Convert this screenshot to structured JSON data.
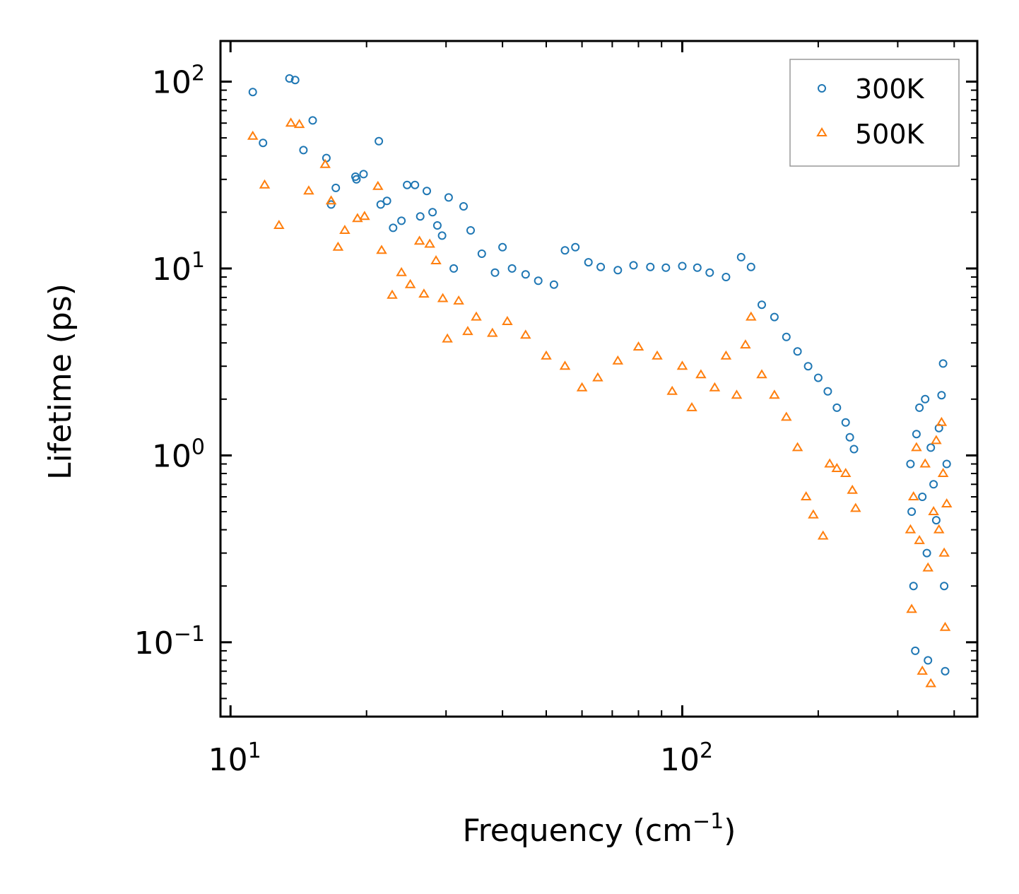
{
  "chart_data": {
    "type": "scatter",
    "xscale": "log",
    "yscale": "log",
    "xlim": [
      9.5,
      450
    ],
    "ylim": [
      0.04,
      165
    ],
    "xlabel": "Frequency (cm",
    "xlabel_sup": "−1",
    "xlabel_tail": ")",
    "ylabel": "Lifetime (ps)",
    "x_ticks": [
      {
        "value": 10,
        "base": "10",
        "exp": "1"
      },
      {
        "value": 100,
        "base": "10",
        "exp": "2"
      }
    ],
    "y_ticks": [
      {
        "value": 0.1,
        "base": "10",
        "exp": "−1"
      },
      {
        "value": 1,
        "base": "10",
        "exp": "0"
      },
      {
        "value": 10,
        "base": "10",
        "exp": "1"
      },
      {
        "value": 100,
        "base": "10",
        "exp": "2"
      }
    ],
    "legend_position": "top-right",
    "series": [
      {
        "name": "300K",
        "marker": "circle",
        "color": "#1f77b4",
        "points": [
          [
            11.2,
            88
          ],
          [
            11.8,
            47
          ],
          [
            13.5,
            104
          ],
          [
            13.9,
            102
          ],
          [
            14.5,
            43
          ],
          [
            15.2,
            62
          ],
          [
            16.3,
            39
          ],
          [
            16.7,
            22
          ],
          [
            17.1,
            27
          ],
          [
            18.9,
            31
          ],
          [
            19.0,
            30
          ],
          [
            19.7,
            32
          ],
          [
            21.3,
            48
          ],
          [
            21.5,
            22
          ],
          [
            22.2,
            23
          ],
          [
            22.9,
            16.5
          ],
          [
            23.9,
            18
          ],
          [
            24.6,
            28
          ],
          [
            25.6,
            28
          ],
          [
            26.3,
            19
          ],
          [
            27.2,
            26
          ],
          [
            28.0,
            20
          ],
          [
            28.7,
            17
          ],
          [
            29.4,
            15
          ],
          [
            30.4,
            24
          ],
          [
            31.2,
            10
          ],
          [
            32.8,
            21.5
          ],
          [
            34.0,
            16
          ],
          [
            36.0,
            12
          ],
          [
            38.5,
            9.5
          ],
          [
            40.0,
            13
          ],
          [
            42.0,
            10
          ],
          [
            45.0,
            9.3
          ],
          [
            48.0,
            8.6
          ],
          [
            52.0,
            8.2
          ],
          [
            55.0,
            12.5
          ],
          [
            58.0,
            13
          ],
          [
            62.0,
            10.8
          ],
          [
            66.0,
            10.2
          ],
          [
            72.0,
            9.8
          ],
          [
            78.0,
            10.4
          ],
          [
            85.0,
            10.2
          ],
          [
            92.0,
            10.1
          ],
          [
            100.0,
            10.3
          ],
          [
            108.0,
            10.1
          ],
          [
            115.0,
            9.5
          ],
          [
            125.0,
            9.0
          ],
          [
            135.0,
            11.5
          ],
          [
            142.0,
            10.2
          ],
          [
            150.0,
            6.4
          ],
          [
            160.0,
            5.5
          ],
          [
            170.0,
            4.3
          ],
          [
            180.0,
            3.6
          ],
          [
            190.0,
            3.0
          ],
          [
            200.0,
            2.6
          ],
          [
            210.0,
            2.2
          ],
          [
            220.0,
            1.8
          ],
          [
            230.0,
            1.5
          ],
          [
            235.0,
            1.25
          ],
          [
            240.0,
            1.08
          ],
          [
            320.0,
            0.9
          ],
          [
            322.0,
            0.5
          ],
          [
            325.0,
            0.2
          ],
          [
            328.0,
            0.09
          ],
          [
            330.0,
            1.3
          ],
          [
            335.0,
            1.8
          ],
          [
            340.0,
            0.6
          ],
          [
            345.0,
            2.0
          ],
          [
            348.0,
            0.3
          ],
          [
            350.0,
            0.08
          ],
          [
            355.0,
            1.1
          ],
          [
            360.0,
            0.7
          ],
          [
            365.0,
            0.45
          ],
          [
            370.0,
            1.4
          ],
          [
            375.0,
            2.1
          ],
          [
            378.0,
            3.1
          ],
          [
            380.0,
            0.2
          ],
          [
            382.0,
            0.07
          ],
          [
            385.0,
            0.9
          ]
        ]
      },
      {
        "name": "500K",
        "marker": "triangle",
        "color": "#ff7f0e",
        "points": [
          [
            11.2,
            51
          ],
          [
            11.9,
            28
          ],
          [
            12.8,
            17
          ],
          [
            13.6,
            60
          ],
          [
            14.2,
            59
          ],
          [
            14.9,
            26
          ],
          [
            16.2,
            36
          ],
          [
            16.7,
            23
          ],
          [
            17.3,
            13
          ],
          [
            17.9,
            16
          ],
          [
            19.1,
            18.5
          ],
          [
            19.8,
            19
          ],
          [
            21.2,
            27.5
          ],
          [
            21.6,
            12.5
          ],
          [
            22.8,
            7.2
          ],
          [
            23.9,
            9.5
          ],
          [
            25.0,
            8.2
          ],
          [
            26.2,
            14
          ],
          [
            26.8,
            7.3
          ],
          [
            27.6,
            13.5
          ],
          [
            28.5,
            11
          ],
          [
            29.5,
            6.9
          ],
          [
            30.2,
            4.2
          ],
          [
            32.0,
            6.7
          ],
          [
            33.5,
            4.6
          ],
          [
            35.0,
            5.5
          ],
          [
            38.0,
            4.5
          ],
          [
            41.0,
            5.2
          ],
          [
            45.0,
            4.4
          ],
          [
            50.0,
            3.4
          ],
          [
            55.0,
            3.0
          ],
          [
            60.0,
            2.3
          ],
          [
            65.0,
            2.6
          ],
          [
            72.0,
            3.2
          ],
          [
            80.0,
            3.8
          ],
          [
            88.0,
            3.4
          ],
          [
            95.0,
            2.2
          ],
          [
            100.0,
            3.0
          ],
          [
            105.0,
            1.8
          ],
          [
            110.0,
            2.7
          ],
          [
            118.0,
            2.3
          ],
          [
            125.0,
            3.4
          ],
          [
            132.0,
            2.1
          ],
          [
            138.0,
            3.9
          ],
          [
            142.0,
            5.5
          ],
          [
            150.0,
            2.7
          ],
          [
            160.0,
            2.1
          ],
          [
            170.0,
            1.6
          ],
          [
            180.0,
            1.1
          ],
          [
            188.0,
            0.6
          ],
          [
            195.0,
            0.48
          ],
          [
            205.0,
            0.37
          ],
          [
            212.0,
            0.9
          ],
          [
            220.0,
            0.85
          ],
          [
            230.0,
            0.8
          ],
          [
            238.0,
            0.65
          ],
          [
            242.0,
            0.52
          ],
          [
            320.0,
            0.4
          ],
          [
            322.0,
            0.15
          ],
          [
            325.0,
            0.6
          ],
          [
            330.0,
            1.1
          ],
          [
            335.0,
            0.35
          ],
          [
            340.0,
            0.07
          ],
          [
            345.0,
            0.9
          ],
          [
            350.0,
            0.25
          ],
          [
            355.0,
            0.06
          ],
          [
            360.0,
            0.5
          ],
          [
            365.0,
            1.2
          ],
          [
            370.0,
            0.4
          ],
          [
            375.0,
            1.5
          ],
          [
            378.0,
            0.8
          ],
          [
            380.0,
            0.3
          ],
          [
            382.0,
            0.12
          ],
          [
            385.0,
            0.55
          ]
        ]
      }
    ]
  }
}
